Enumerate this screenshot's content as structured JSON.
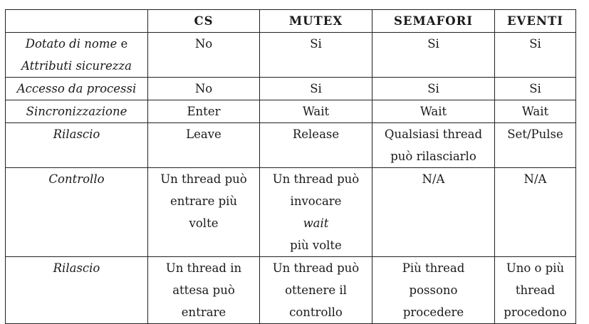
{
  "table": {
    "columns": [
      "",
      "CS",
      "MUTEX",
      "SEMAFORI",
      "EVENTI"
    ],
    "rows": [
      {
        "header_lines": [
          {
            "italic": "Dotato di nome",
            "plain": " e"
          },
          {
            "italic": "Attributi sicurezza",
            "plain": ""
          }
        ],
        "cells": [
          [
            "No"
          ],
          [
            "Si"
          ],
          [
            "Si"
          ],
          [
            "Si"
          ]
        ]
      },
      {
        "header_lines": [
          {
            "italic": "Accesso da processi",
            "plain": ""
          }
        ],
        "cells": [
          [
            "No"
          ],
          [
            "Si"
          ],
          [
            "Si"
          ],
          [
            "Si"
          ]
        ]
      },
      {
        "header_lines": [
          {
            "italic": "Sincronizzazione",
            "plain": ""
          }
        ],
        "cells": [
          [
            "Enter"
          ],
          [
            "Wait"
          ],
          [
            "Wait"
          ],
          [
            "Wait"
          ]
        ]
      },
      {
        "header_lines": [
          {
            "italic": "Rilascio",
            "plain": ""
          }
        ],
        "cells": [
          [
            "Leave"
          ],
          [
            "Release"
          ],
          [
            "Qualsiasi thread",
            "può rilasciarlo"
          ],
          [
            "Set/Pulse"
          ]
        ]
      },
      {
        "header_lines": [
          {
            "italic": "Controllo",
            "plain": ""
          }
        ],
        "cells": [
          [
            "Un thread può",
            "entrare più",
            "volte"
          ],
          [
            "Un thread può",
            "invocare |wait|",
            "più volte"
          ],
          [
            "N/A"
          ],
          [
            "N/A"
          ]
        ]
      },
      {
        "header_lines": [
          {
            "italic": "Rilascio",
            "plain": ""
          }
        ],
        "cells": [
          [
            "Un thread in",
            "attesa può",
            "entrare"
          ],
          [
            "Un thread può",
            "ottenere il",
            "controllo"
          ],
          [
            "Più thread",
            "possono",
            "procedere"
          ],
          [
            "Uno o più",
            "thread",
            "procedono"
          ]
        ]
      }
    ],
    "inline_italic_word": "wait",
    "controllo_mutex_line2_prefix": "invocare "
  }
}
